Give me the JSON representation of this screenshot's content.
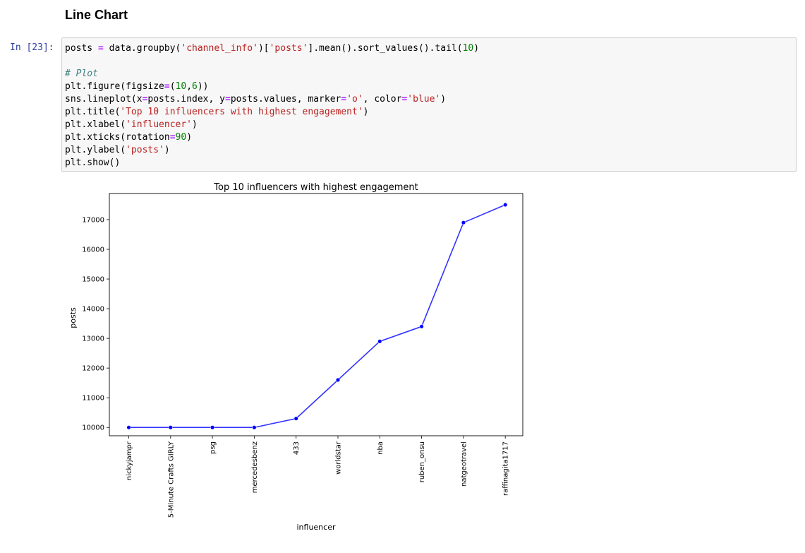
{
  "markdown": {
    "heading": "Line Chart"
  },
  "cell": {
    "prompt": "In [23]:",
    "code_lines": [
      [
        {
          "t": "posts "
        },
        {
          "t": "=",
          "c": "op"
        },
        {
          "t": " data.groupby("
        },
        {
          "t": "'channel_info'",
          "c": "str"
        },
        {
          "t": ")["
        },
        {
          "t": "'posts'",
          "c": "str"
        },
        {
          "t": "].mean().sort_values().tail("
        },
        {
          "t": "10",
          "c": "num"
        },
        {
          "t": ")"
        }
      ],
      [],
      [
        {
          "t": "# Plot",
          "c": "com"
        }
      ],
      [
        {
          "t": "plt.figure(figsize"
        },
        {
          "t": "=",
          "c": "op"
        },
        {
          "t": "("
        },
        {
          "t": "10",
          "c": "num"
        },
        {
          "t": ","
        },
        {
          "t": "6",
          "c": "num"
        },
        {
          "t": "))"
        }
      ],
      [
        {
          "t": "sns.lineplot(x"
        },
        {
          "t": "=",
          "c": "op"
        },
        {
          "t": "posts.index, y"
        },
        {
          "t": "=",
          "c": "op"
        },
        {
          "t": "posts.values, marker"
        },
        {
          "t": "=",
          "c": "op"
        },
        {
          "t": "'o'",
          "c": "str"
        },
        {
          "t": ", color"
        },
        {
          "t": "=",
          "c": "op"
        },
        {
          "t": "'blue'",
          "c": "str"
        },
        {
          "t": ")"
        }
      ],
      [
        {
          "t": "plt.title("
        },
        {
          "t": "'Top 10 influencers with highest engagement'",
          "c": "str"
        },
        {
          "t": ")"
        }
      ],
      [
        {
          "t": "plt.xlabel("
        },
        {
          "t": "'influencer'",
          "c": "str"
        },
        {
          "t": ")"
        }
      ],
      [
        {
          "t": "plt.xticks(rotation"
        },
        {
          "t": "=",
          "c": "op"
        },
        {
          "t": "90",
          "c": "num"
        },
        {
          "t": ")"
        }
      ],
      [
        {
          "t": "plt.ylabel("
        },
        {
          "t": "'posts'",
          "c": "str"
        },
        {
          "t": ")"
        }
      ],
      [
        {
          "t": "plt.show()"
        }
      ]
    ]
  },
  "chart_data": {
    "type": "line",
    "title": "Top 10 influencers with highest engagement",
    "xlabel": "influencer",
    "ylabel": "posts",
    "categories": [
      "nickyjampr",
      "5-Minute Crafts GIRLY",
      "psg",
      "mercedesbenz",
      "433",
      "worldstar",
      "nba",
      "ruben_onsu",
      "natgeotravel",
      "raffinagita1717"
    ],
    "values": [
      10000,
      10000,
      10000,
      10000,
      10300,
      11600,
      12900,
      13400,
      16900,
      17500
    ],
    "yticks": [
      10000,
      11000,
      12000,
      13000,
      14000,
      15000,
      16000,
      17000
    ],
    "ylim": [
      9720,
      17880
    ],
    "color": "#0000ff",
    "marker": "o",
    "grid": false,
    "xtick_rotation": 90
  }
}
